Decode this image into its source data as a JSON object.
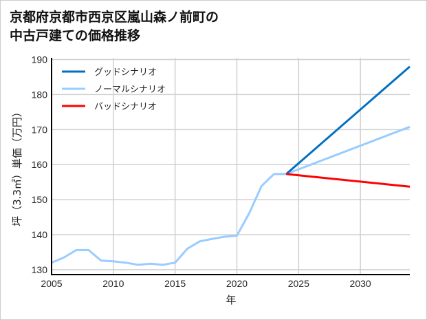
{
  "chart_data": {
    "type": "line",
    "title_lines": [
      "京都府京都市西京区嵐山森ノ前町の",
      "中古戸建ての価格推移"
    ],
    "xlabel": "年",
    "ylabel": "坪（3.3㎡）単価（万円）",
    "xlim": [
      2005,
      2034
    ],
    "ylim": [
      128.6,
      190.5
    ],
    "xticks": [
      2005,
      2010,
      2015,
      2020,
      2025,
      2030
    ],
    "yticks": [
      130,
      140,
      150,
      160,
      170,
      180,
      190
    ],
    "grid": true,
    "legend_position": "top-left",
    "series": [
      {
        "name": "グッドシナリオ",
        "color": "#0070C0",
        "x": [
          2024,
          2034
        ],
        "y": [
          157.3,
          188.0
        ]
      },
      {
        "name": "ノーマルシナリオ",
        "color": "#99CCFF",
        "x": [
          2005,
          2006,
          2007,
          2008,
          2009,
          2010,
          2011,
          2012,
          2013,
          2014,
          2015,
          2016,
          2017,
          2018,
          2019,
          2020,
          2021,
          2022,
          2023,
          2024,
          2034
        ],
        "y": [
          132.0,
          133.5,
          135.6,
          135.6,
          132.6,
          132.4,
          132.0,
          131.4,
          131.7,
          131.4,
          132.0,
          136.0,
          138.1,
          138.8,
          139.4,
          139.7,
          146.1,
          153.9,
          157.3,
          157.3,
          170.8
        ]
      },
      {
        "name": "バッドシナリオ",
        "color": "#FF0000",
        "x": [
          2024,
          2034
        ],
        "y": [
          157.3,
          153.7
        ]
      }
    ]
  }
}
